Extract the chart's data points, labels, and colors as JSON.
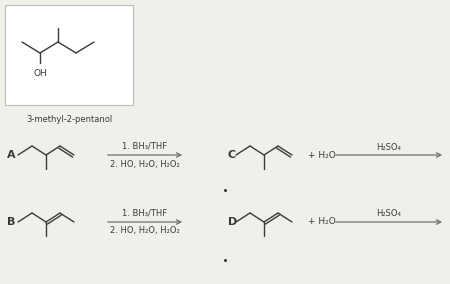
{
  "bg_color": "#f0f0eb",
  "box_edge_color": "#bbbbbb",
  "line_color": "#3a3a3a",
  "arrow_color": "#707070",
  "title": "3-methyl-2-pentanol",
  "label_A": "A",
  "label_B": "B",
  "label_C": "C",
  "label_D": "D",
  "rxn_AB_line1": "1. BH₃/THF",
  "rxn_AB_line2": "2. HO, H₂O, H₂O₂",
  "rxn_C_reagent": "H₂SO₄",
  "rxn_D_reagent": "H₂SO₄",
  "plus": "+ H₂O",
  "font_size_label": 8,
  "font_size_reagent": 6,
  "font_size_title": 6,
  "font_size_oh": 6.5
}
